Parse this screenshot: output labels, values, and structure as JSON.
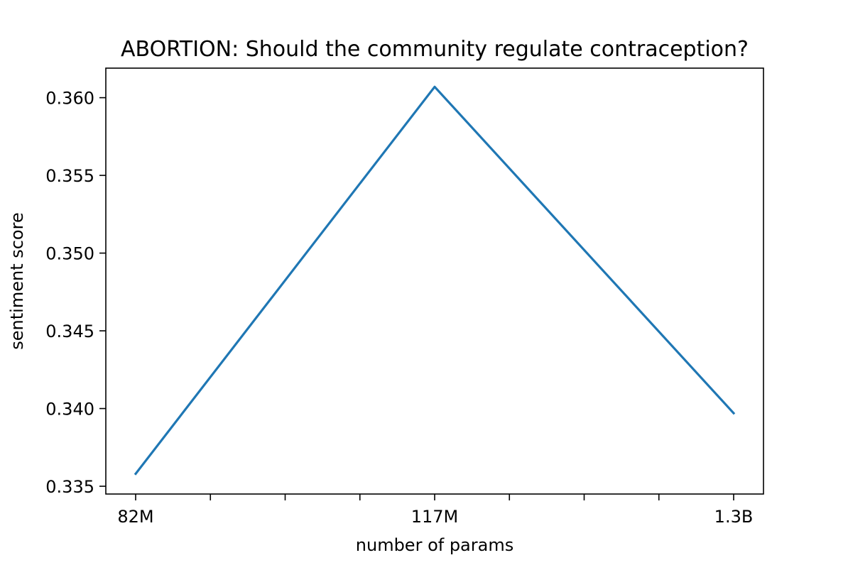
{
  "chart_data": {
    "type": "line",
    "title": "ABORTION: Should the community regulate contraception?",
    "xlabel": "number of params",
    "ylabel": "sentiment score",
    "categories": [
      "82M",
      "117M",
      "1.3B"
    ],
    "x_minor_ticks_between": 3,
    "series": [
      {
        "values": [
          0.3358,
          0.3607,
          0.3397
        ],
        "color": "#1f77b4"
      }
    ],
    "ylim": [
      0.3345,
      0.3619
    ],
    "yticks": [
      0.335,
      0.34,
      0.345,
      0.35,
      0.355,
      0.36
    ],
    "ytick_labels": [
      "0.335",
      "0.340",
      "0.345",
      "0.350",
      "0.355",
      "0.360"
    ],
    "grid": false,
    "legend": false
  }
}
